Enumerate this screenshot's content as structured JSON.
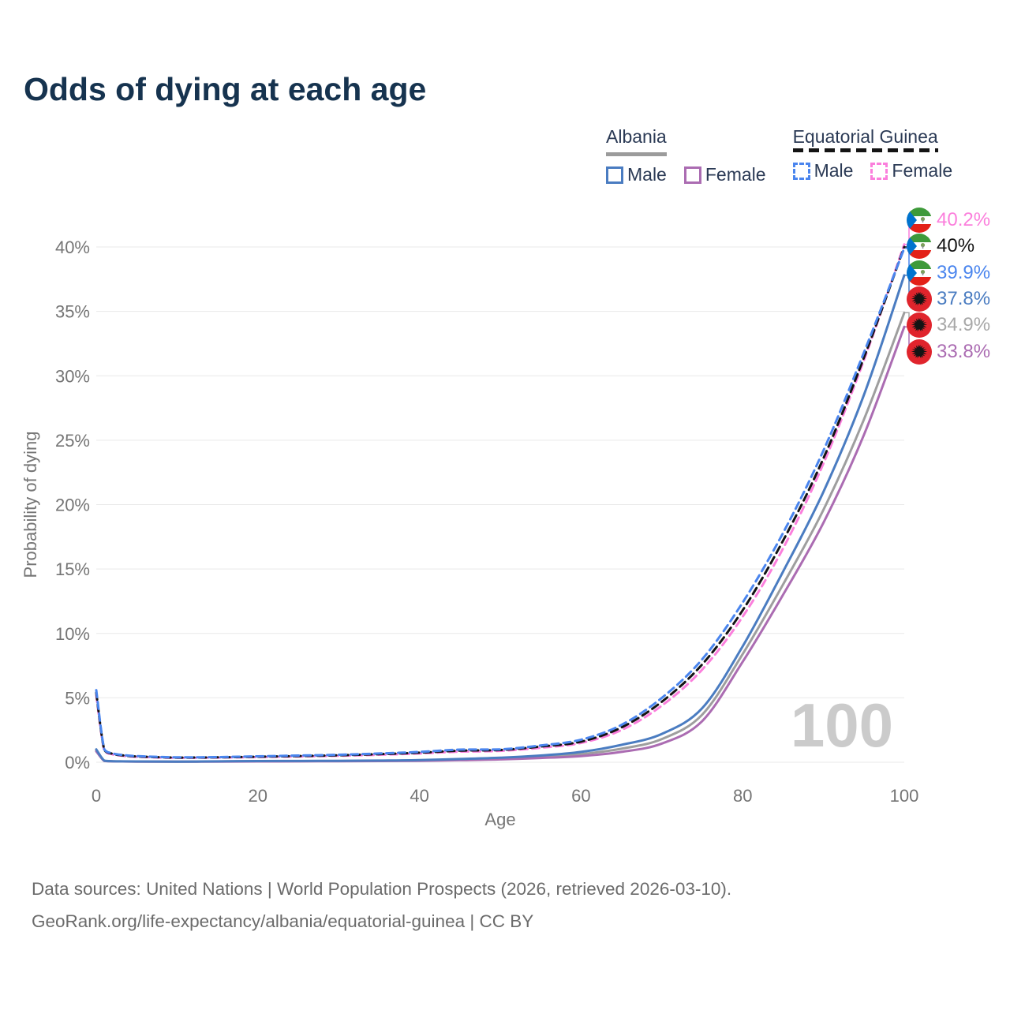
{
  "title": "Odds of dying at each age",
  "legend": {
    "groups": [
      {
        "name": "Albania",
        "line_style": "solid",
        "underline_color": "#9b9b9b",
        "items": [
          {
            "label": "Male",
            "color": "#4a7cc1",
            "dashed": false
          },
          {
            "label": "Female",
            "color": "#ab6cb2",
            "dashed": false
          }
        ]
      },
      {
        "name": "Equatorial Guinea",
        "line_style": "dashed",
        "underline_color": "#141414",
        "items": [
          {
            "label": "Male",
            "color": "#4a85ee",
            "dashed": true
          },
          {
            "label": "Female",
            "color": "#fb7fdc",
            "dashed": true
          }
        ]
      }
    ]
  },
  "axes": {
    "y_title": "Probability of dying",
    "x_title": "Age",
    "y_ticks": [
      "0%",
      "5%",
      "10%",
      "15%",
      "20%",
      "25%",
      "30%",
      "35%",
      "40%"
    ],
    "x_ticks": [
      "0",
      "20",
      "40",
      "60",
      "80",
      "100"
    ]
  },
  "watermark": "100",
  "end_labels": [
    {
      "text": "40.2%",
      "color": "#fb7fdc",
      "flag": "gq",
      "value": 40.2
    },
    {
      "text": "40%",
      "color": "#141414",
      "flag": "gq",
      "value": 40.0
    },
    {
      "text": "39.9%",
      "color": "#4a85ee",
      "flag": "gq",
      "value": 39.9
    },
    {
      "text": "37.8%",
      "color": "#4a7cc1",
      "flag": "al",
      "value": 37.8
    },
    {
      "text": "34.9%",
      "color": "#a8a8a8",
      "flag": "al",
      "value": 34.9
    },
    {
      "text": "33.8%",
      "color": "#ab6cb2",
      "flag": "al",
      "value": 33.8
    }
  ],
  "footer": {
    "line1": "Data sources: United Nations | World Population Prospects (2026, retrieved 2026-03-10).",
    "line2": "GeoRank.org/life-expectancy/albania/equatorial-guinea | CC BY"
  },
  "chart_data": {
    "type": "line",
    "title": "Odds of dying at each age",
    "xlabel": "Age",
    "ylabel": "Probability of dying",
    "xlim": [
      0,
      100
    ],
    "ylim_percent": [
      0,
      40
    ],
    "grid": "horizontal",
    "legend_position": "top-right",
    "series": [
      {
        "id": "albania-total",
        "name": "Albania (both sexes)",
        "country": "Albania",
        "sex": "total",
        "color": "#9e9e9e",
        "dash": false,
        "end_label": "34.9%",
        "points": [
          [
            0,
            0.92
          ],
          [
            1,
            0.11
          ],
          [
            2,
            0.075
          ],
          [
            3,
            0.065
          ],
          [
            5,
            0.055
          ],
          [
            10,
            0.045
          ],
          [
            15,
            0.06
          ],
          [
            20,
            0.075
          ],
          [
            25,
            0.085
          ],
          [
            30,
            0.095
          ],
          [
            35,
            0.11
          ],
          [
            40,
            0.14
          ],
          [
            45,
            0.2
          ],
          [
            50,
            0.28
          ],
          [
            55,
            0.42
          ],
          [
            60,
            0.63
          ],
          [
            65,
            1.05
          ],
          [
            70,
            1.8
          ],
          [
            75,
            3.7
          ],
          [
            80,
            8.4
          ],
          [
            85,
            13.8
          ],
          [
            90,
            19.6
          ],
          [
            95,
            26.6
          ],
          [
            100,
            34.9
          ]
        ]
      },
      {
        "id": "albania-female",
        "name": "Albania Female",
        "country": "Albania",
        "sex": "female",
        "color": "#ab6cb2",
        "dash": false,
        "end_label": "33.8%",
        "points": [
          [
            0,
            0.85
          ],
          [
            1,
            0.1
          ],
          [
            2,
            0.07
          ],
          [
            3,
            0.06
          ],
          [
            5,
            0.05
          ],
          [
            10,
            0.04
          ],
          [
            15,
            0.05
          ],
          [
            20,
            0.06
          ],
          [
            25,
            0.07
          ],
          [
            30,
            0.08
          ],
          [
            35,
            0.09
          ],
          [
            40,
            0.11
          ],
          [
            45,
            0.16
          ],
          [
            50,
            0.22
          ],
          [
            55,
            0.33
          ],
          [
            60,
            0.48
          ],
          [
            65,
            0.8
          ],
          [
            70,
            1.45
          ],
          [
            75,
            3.2
          ],
          [
            80,
            7.8
          ],
          [
            85,
            13.0
          ],
          [
            90,
            18.6
          ],
          [
            95,
            25.4
          ],
          [
            100,
            33.8
          ]
        ]
      },
      {
        "id": "albania-male",
        "name": "Albania Male",
        "country": "Albania",
        "sex": "male",
        "color": "#4a7cc1",
        "dash": false,
        "end_label": "37.8%",
        "points": [
          [
            0,
            1.0
          ],
          [
            1,
            0.12
          ],
          [
            2,
            0.08
          ],
          [
            3,
            0.07
          ],
          [
            5,
            0.06
          ],
          [
            10,
            0.05
          ],
          [
            15,
            0.07
          ],
          [
            20,
            0.09
          ],
          [
            25,
            0.1
          ],
          [
            30,
            0.11
          ],
          [
            35,
            0.13
          ],
          [
            40,
            0.17
          ],
          [
            45,
            0.25
          ],
          [
            50,
            0.35
          ],
          [
            55,
            0.52
          ],
          [
            60,
            0.8
          ],
          [
            65,
            1.35
          ],
          [
            70,
            2.2
          ],
          [
            75,
            4.2
          ],
          [
            80,
            9.0
          ],
          [
            85,
            14.8
          ],
          [
            90,
            21.0
          ],
          [
            95,
            28.5
          ],
          [
            100,
            37.8
          ]
        ]
      },
      {
        "id": "eq-guinea-female",
        "name": "Equatorial Guinea Female",
        "country": "Equatorial Guinea",
        "sex": "female",
        "color": "#fb7fdc",
        "dash": true,
        "end_label": "40.2%",
        "points": [
          [
            0,
            5.2
          ],
          [
            1,
            0.9
          ],
          [
            2,
            0.62
          ],
          [
            3,
            0.52
          ],
          [
            5,
            0.42
          ],
          [
            10,
            0.34
          ],
          [
            15,
            0.36
          ],
          [
            20,
            0.4
          ],
          [
            25,
            0.45
          ],
          [
            30,
            0.5
          ],
          [
            35,
            0.58
          ],
          [
            40,
            0.68
          ],
          [
            45,
            0.82
          ],
          [
            50,
            0.88
          ],
          [
            55,
            1.12
          ],
          [
            60,
            1.5
          ],
          [
            65,
            2.5
          ],
          [
            70,
            4.4
          ],
          [
            75,
            7.2
          ],
          [
            80,
            11.3
          ],
          [
            85,
            16.6
          ],
          [
            90,
            23.2
          ],
          [
            95,
            31.2
          ],
          [
            100,
            40.2
          ]
        ]
      },
      {
        "id": "eq-guinea-total",
        "name": "Equatorial Guinea (both sexes)",
        "country": "Equatorial Guinea",
        "sex": "total",
        "color": "#141414",
        "dash": true,
        "end_label": "40%",
        "points": [
          [
            0,
            5.4
          ],
          [
            1,
            0.95
          ],
          [
            2,
            0.66
          ],
          [
            3,
            0.55
          ],
          [
            5,
            0.45
          ],
          [
            10,
            0.36
          ],
          [
            15,
            0.38
          ],
          [
            20,
            0.43
          ],
          [
            25,
            0.48
          ],
          [
            30,
            0.54
          ],
          [
            35,
            0.63
          ],
          [
            40,
            0.74
          ],
          [
            45,
            0.9
          ],
          [
            50,
            0.95
          ],
          [
            55,
            1.22
          ],
          [
            60,
            1.6
          ],
          [
            65,
            2.7
          ],
          [
            70,
            4.7
          ],
          [
            75,
            7.6
          ],
          [
            80,
            11.8
          ],
          [
            85,
            17.2
          ],
          [
            90,
            23.6
          ],
          [
            95,
            31.4
          ],
          [
            100,
            40.0
          ]
        ]
      },
      {
        "id": "eq-guinea-male",
        "name": "Equatorial Guinea Male",
        "country": "Equatorial Guinea",
        "sex": "male",
        "color": "#4a85ee",
        "dash": true,
        "end_label": "39.9%",
        "points": [
          [
            0,
            5.6
          ],
          [
            1,
            1.0
          ],
          [
            2,
            0.7
          ],
          [
            3,
            0.58
          ],
          [
            5,
            0.48
          ],
          [
            10,
            0.38
          ],
          [
            15,
            0.4
          ],
          [
            20,
            0.46
          ],
          [
            25,
            0.52
          ],
          [
            30,
            0.58
          ],
          [
            35,
            0.68
          ],
          [
            40,
            0.8
          ],
          [
            45,
            0.98
          ],
          [
            50,
            1.0
          ],
          [
            55,
            1.3
          ],
          [
            60,
            1.75
          ],
          [
            65,
            2.9
          ],
          [
            70,
            5.0
          ],
          [
            75,
            8.0
          ],
          [
            80,
            12.4
          ],
          [
            85,
            17.8
          ],
          [
            90,
            24.2
          ],
          [
            95,
            31.8
          ],
          [
            100,
            39.9
          ]
        ]
      }
    ]
  }
}
